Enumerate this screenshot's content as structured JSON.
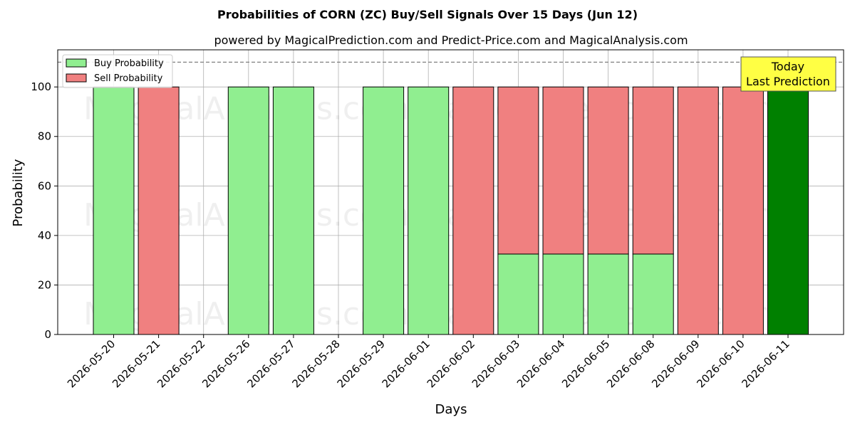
{
  "chart_data": {
    "type": "bar",
    "title": "Probabilities of CORN (ZC) Buy/Sell Signals Over 15 Days (Jun 12)",
    "subtitle": "powered by MagicalPrediction.com and Predict-Price.com and MagicalAnalysis.com",
    "xlabel": "Days",
    "ylabel": "Probability",
    "ylim": [
      0,
      115
    ],
    "yticks": [
      0,
      20,
      40,
      60,
      80,
      100
    ],
    "grid": true,
    "legend_position": "top-left",
    "reference_line": 110,
    "categories": [
      "2026-05-20",
      "2026-05-21",
      "2026-05-22",
      "2026-05-26",
      "2026-05-27",
      "2026-05-28",
      "2026-05-29",
      "2026-06-01",
      "2026-06-02",
      "2026-06-03",
      "2026-06-04",
      "2026-06-05",
      "2026-06-08",
      "2026-06-09",
      "2026-06-10",
      "2026-06-11"
    ],
    "series": [
      {
        "name": "Buy Probability",
        "color": "#90ee90",
        "values": [
          100,
          0,
          0,
          100,
          100,
          0,
          100,
          100,
          0,
          32.5,
          32.5,
          32.5,
          32.5,
          0,
          0,
          100
        ]
      },
      {
        "name": "Sell Probability",
        "color": "#f08080",
        "values": [
          0,
          100,
          0,
          0,
          0,
          0,
          0,
          0,
          100,
          67.5,
          67.5,
          67.5,
          67.5,
          100,
          100,
          0
        ]
      }
    ],
    "highlight": {
      "index": 15,
      "color": "#008000"
    },
    "callout": [
      "Today",
      "Last Prediction"
    ],
    "watermarks": [
      "MagicalAnalysis.com",
      "MagicalPrediction.com"
    ]
  }
}
